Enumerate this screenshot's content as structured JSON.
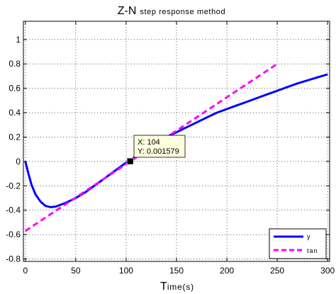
{
  "chart_data": {
    "type": "line",
    "title_main": "Z-N",
    "title_sub": "step response method",
    "xlabel_big": "T",
    "xlabel_small": "ime(s)",
    "xlim": [
      -2,
      302
    ],
    "ylim": [
      -0.82,
      1.15
    ],
    "xticks": [
      0,
      50,
      100,
      150,
      200,
      250,
      300
    ],
    "yticks": [
      -0.8,
      -0.6,
      -0.4,
      -0.2,
      0,
      0.2,
      0.4,
      0.6,
      0.8,
      1
    ],
    "grid": true,
    "legend_position": "bottom-right",
    "series": [
      {
        "name": "y",
        "color": "#0000ff",
        "style": "solid",
        "x": [
          0,
          3,
          6,
          10,
          15,
          20,
          25,
          30,
          40,
          50,
          60,
          70,
          80,
          90,
          100,
          104,
          110,
          120,
          130,
          140,
          150,
          160,
          170,
          180,
          190,
          200,
          210,
          220,
          230,
          240,
          250,
          260,
          270,
          280,
          290,
          300
        ],
        "y": [
          0,
          -0.1,
          -0.19,
          -0.27,
          -0.33,
          -0.365,
          -0.375,
          -0.37,
          -0.34,
          -0.3,
          -0.25,
          -0.19,
          -0.13,
          -0.07,
          -0.01,
          0.001579,
          0.05,
          0.11,
          0.16,
          0.2,
          0.24,
          0.28,
          0.32,
          0.36,
          0.4,
          0.43,
          0.46,
          0.49,
          0.52,
          0.55,
          0.58,
          0.61,
          0.64,
          0.665,
          0.69,
          0.715
        ]
      },
      {
        "name": "tan",
        "color": "#ff00ff",
        "style": "dashed",
        "x": [
          0,
          250
        ],
        "y": [
          -0.57,
          0.8
        ]
      }
    ],
    "datatip": {
      "x_label": "X: 104",
      "y_label": "Y: 0.001579",
      "x": 104,
      "y": 0.001579
    }
  }
}
